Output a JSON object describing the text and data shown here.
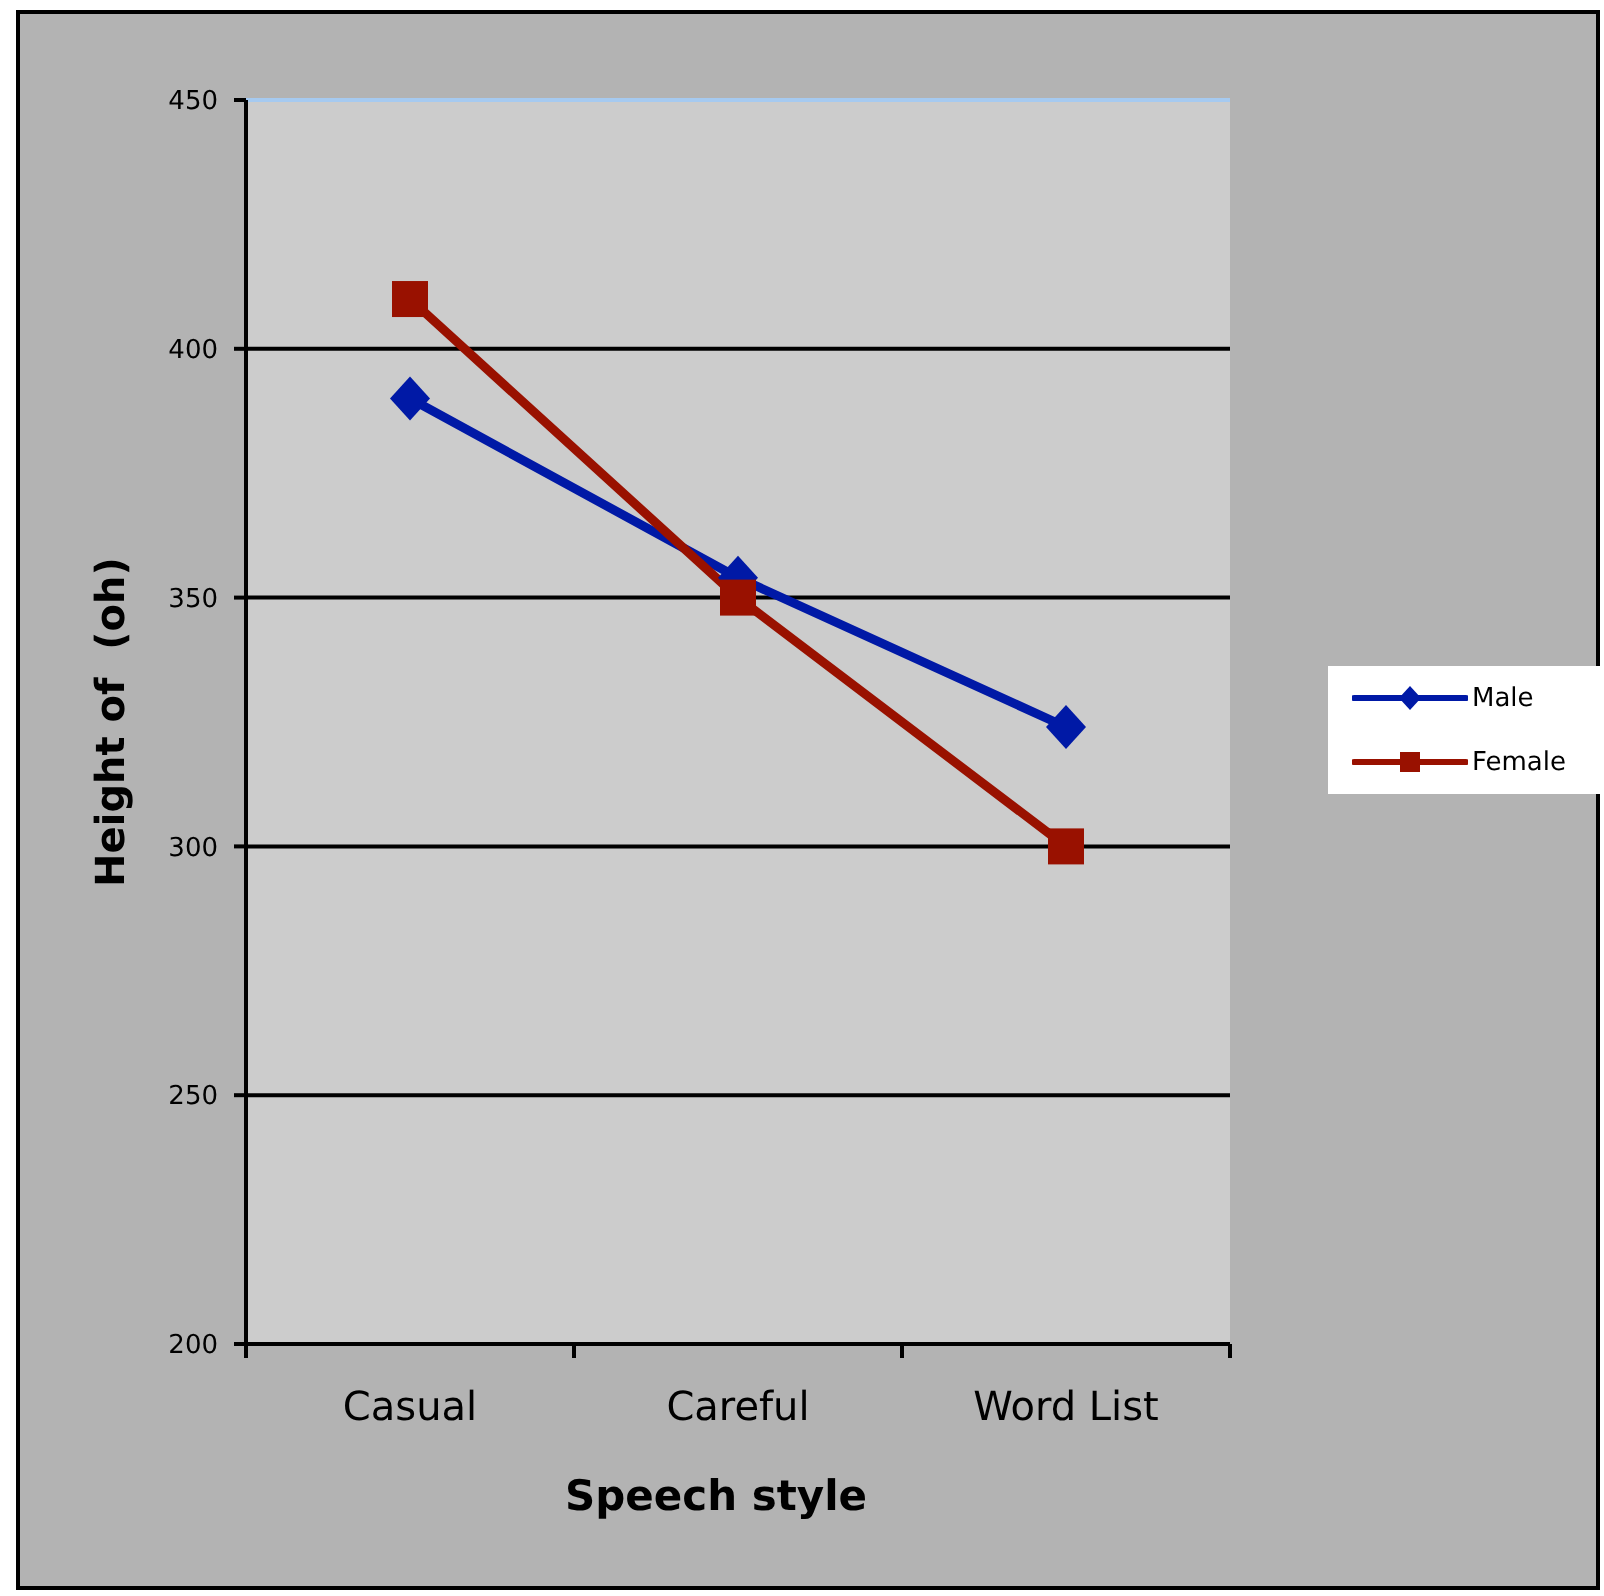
{
  "chart_data": {
    "type": "line",
    "xlabel": "Speech style",
    "ylabel": "Height of  (oh)",
    "categories": [
      "Casual",
      "Careful",
      "Word List"
    ],
    "series": [
      {
        "name": "Male",
        "color": "#0019a6",
        "values": [
          390,
          354,
          324
        ],
        "marker": "diamond"
      },
      {
        "name": "Female",
        "color": "#991100",
        "values": [
          410,
          350,
          300
        ],
        "marker": "square"
      }
    ],
    "ylim": [
      200,
      450
    ],
    "yticks": [
      200,
      250,
      300,
      350,
      400,
      450
    ],
    "grid": "y",
    "legend": "right"
  }
}
